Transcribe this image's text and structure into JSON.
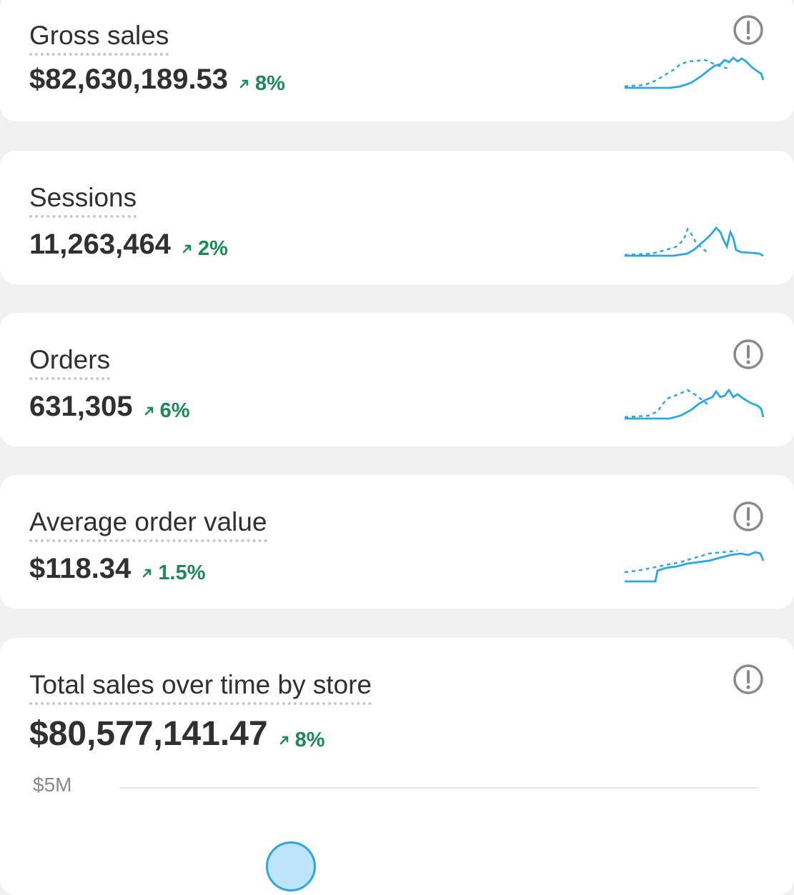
{
  "colors": {
    "accent": "#2aa7e8",
    "trend_positive": "#1c8a55",
    "info_icon": "#8a8a8a"
  },
  "cards": [
    {
      "title": "Gross sales",
      "value": "$82,630,189.53",
      "change": "8%",
      "trend": "up",
      "info_icon": "info-circle-icon"
    },
    {
      "title": "Sessions",
      "value": "11,263,464",
      "change": "2%",
      "trend": "up"
    },
    {
      "title": "Orders",
      "value": "631,305",
      "change": "6%",
      "trend": "up",
      "info_icon": "info-circle-icon"
    },
    {
      "title": "Average order value",
      "value": "$118.34",
      "change": "1.5%",
      "trend": "up",
      "info_icon": "info-circle-icon"
    }
  ],
  "total_sales": {
    "title": "Total sales over time by store",
    "value": "$80,577,141.47",
    "change": "8%",
    "trend": "up",
    "info_icon": "info-circle-icon",
    "axis_label": "$5M"
  }
}
